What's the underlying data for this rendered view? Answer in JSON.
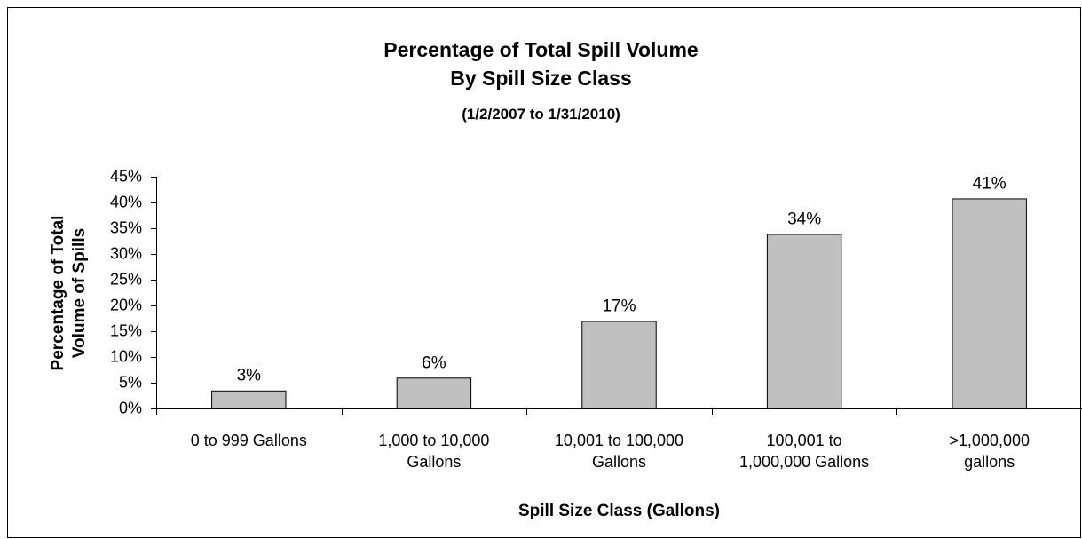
{
  "chart_data": {
    "type": "bar",
    "title": "Percentage of Total Spill Volume\nBy Spill Size Class",
    "subtitle": "(1/2/2007 to 1/31/2010)",
    "x_label": "Spill Size Class (Gallons)",
    "y_label": "Percentage of Total\nVolume of Spills",
    "categories": [
      "0 to 999 Gallons",
      "1,000 to 10,000\nGallons",
      "10,001 to 100,000\nGallons",
      "100,001 to\n1,000,000 Gallons",
      ">1,000,000\ngallons"
    ],
    "values": [
      3.4,
      5.9,
      16.9,
      33.8,
      40.7
    ],
    "value_labels": [
      "3%",
      "6%",
      "17%",
      "34%",
      "41%"
    ],
    "color": "#c0c0c0",
    "ylim": [
      0,
      45
    ],
    "yticks": [
      {
        "value": 0,
        "label": "0%"
      },
      {
        "value": 5,
        "label": "5%"
      },
      {
        "value": 10,
        "label": "10%"
      },
      {
        "value": 15,
        "label": "15%"
      },
      {
        "value": 20,
        "label": "20%"
      },
      {
        "value": 25,
        "label": "25%"
      },
      {
        "value": 30,
        "label": "30%"
      },
      {
        "value": 35,
        "label": "35%"
      },
      {
        "value": 40,
        "label": "40%"
      },
      {
        "value": 45,
        "label": "45%"
      }
    ],
    "grid": false
  }
}
